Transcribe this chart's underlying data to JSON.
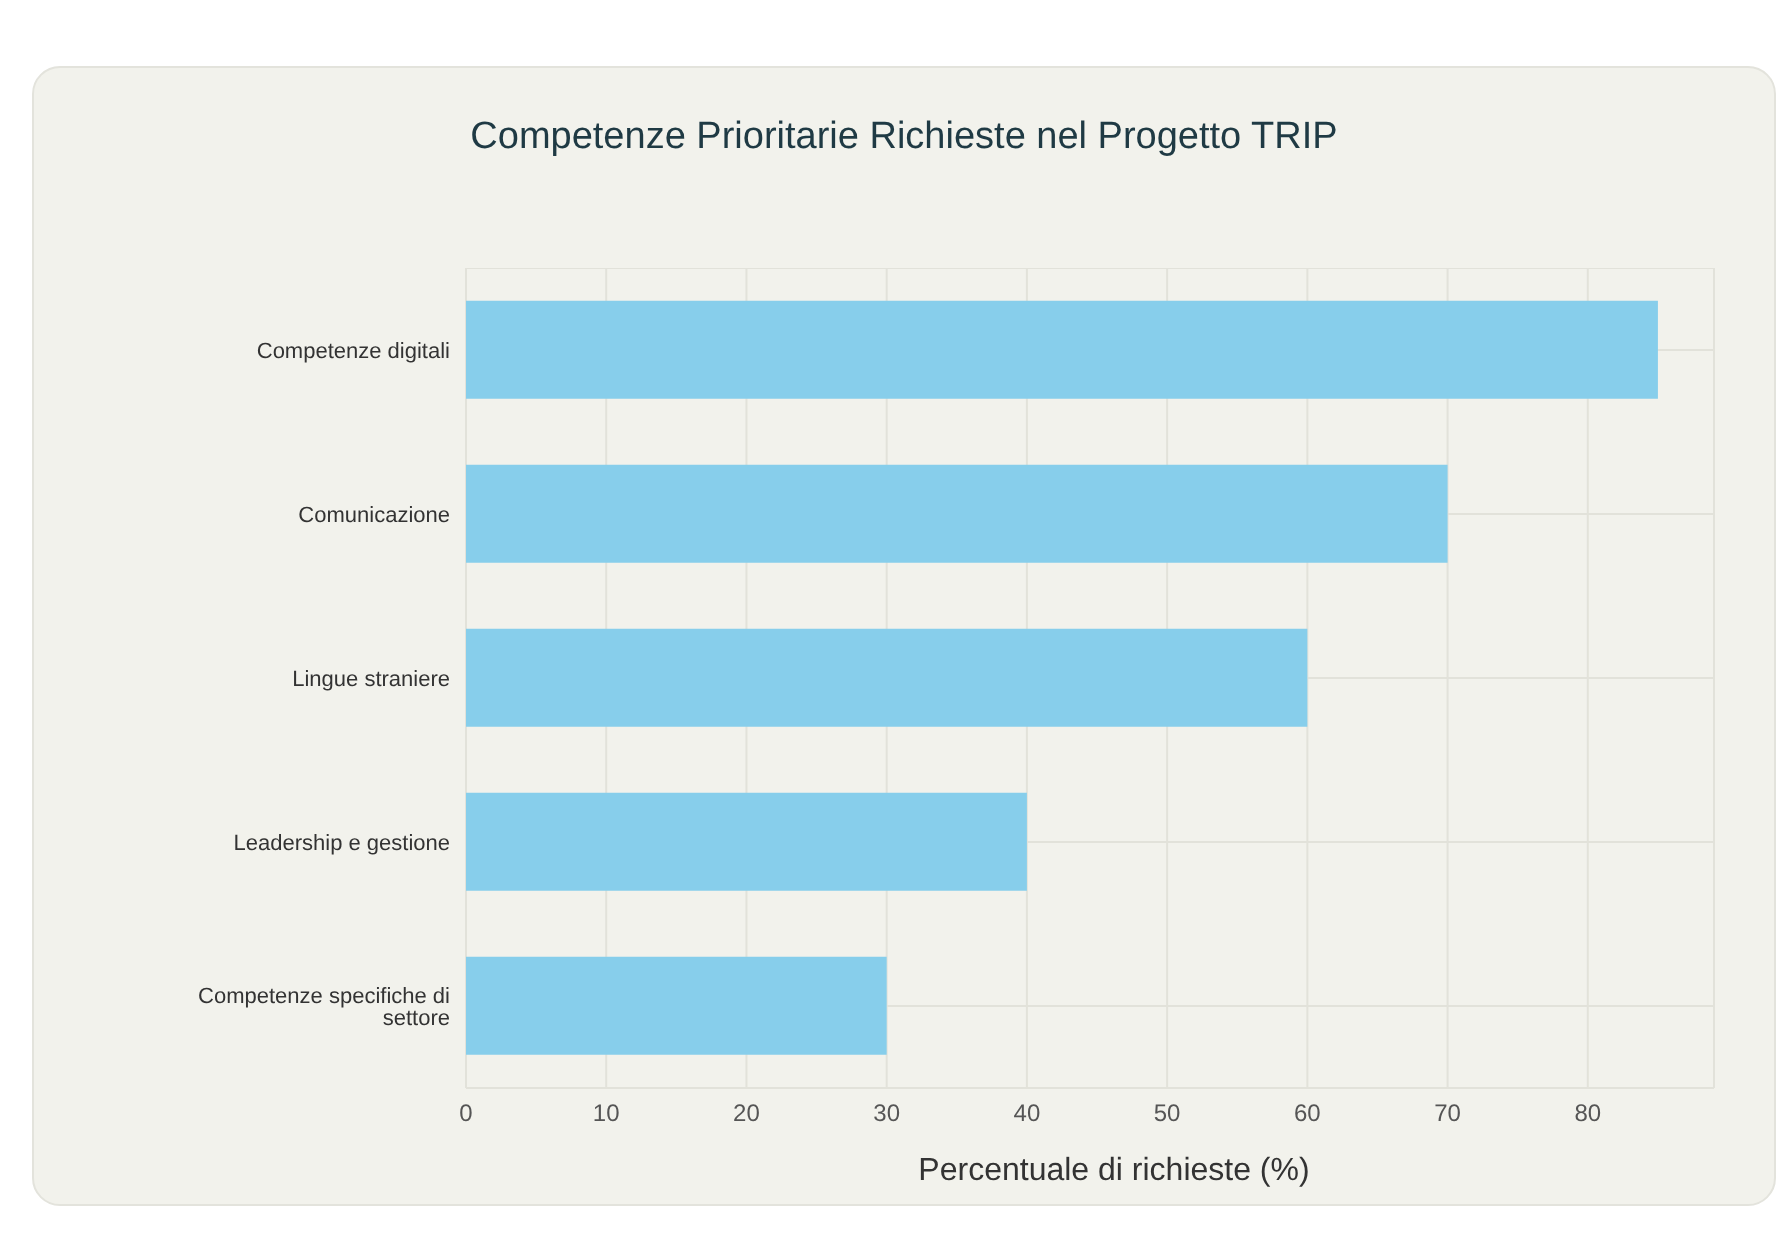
{
  "chart_data": {
    "type": "bar",
    "orientation": "horizontal",
    "title": "Competenze Prioritarie Richieste nel Progetto TRIP",
    "xlabel": "Percentuale di richieste (%)",
    "categories": [
      "Competenze digitali",
      "Comunicazione",
      "Lingue straniere",
      "Leadership e gestione",
      "Competenze specifiche di settore"
    ],
    "values": [
      85,
      70,
      60,
      40,
      30
    ],
    "color": "#87ceeb",
    "xlim": [
      0,
      89
    ],
    "xticks": [
      0,
      10,
      20,
      30,
      40,
      50,
      60,
      70,
      80
    ],
    "grid": true
  }
}
